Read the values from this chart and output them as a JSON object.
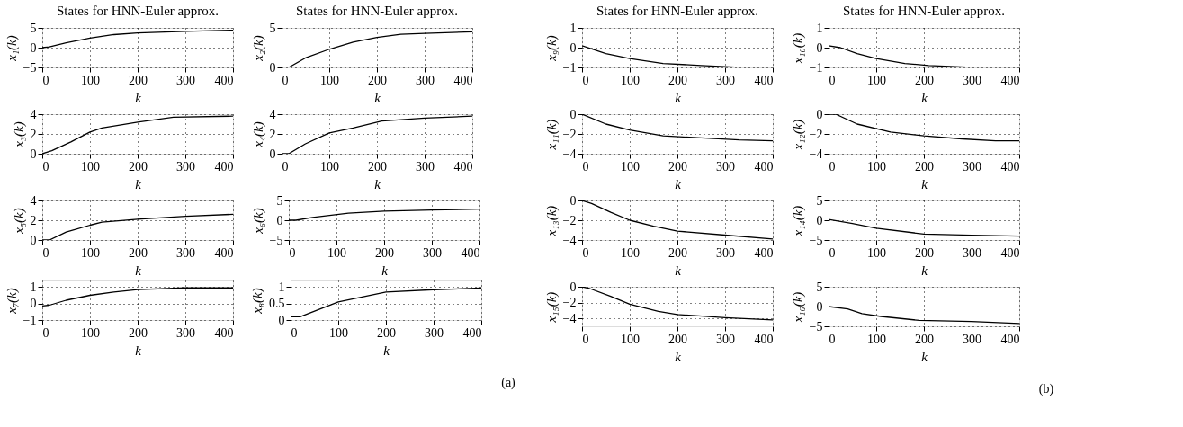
{
  "chart_data": [
    {
      "type": "line",
      "title": "States for HNN-Euler approx.",
      "xlabel": "k",
      "ylabel": "x₁(k)",
      "xlim": [
        0,
        400
      ],
      "xticks": [
        0,
        100,
        200,
        300,
        400
      ],
      "ylim": [
        -5,
        5
      ],
      "yticks": [
        -5,
        0,
        5
      ],
      "grid": true,
      "x": [
        0,
        15,
        50,
        100,
        150,
        200,
        300,
        400
      ],
      "series": [
        {
          "color": "#000000",
          "values": [
            0,
            0.2,
            1.2,
            2.4,
            3.3,
            3.7,
            4.1,
            4.4
          ]
        }
      ]
    },
    {
      "type": "line",
      "title": "States for HNN-Euler approx.",
      "xlabel": "k",
      "ylabel": "x₂(k)",
      "xlim": [
        0,
        400
      ],
      "xticks": [
        0,
        100,
        200,
        300,
        400
      ],
      "ylim": [
        0,
        5
      ],
      "yticks": [
        0,
        5
      ],
      "grid": true,
      "x": [
        0,
        15,
        50,
        100,
        150,
        200,
        250,
        300,
        400
      ],
      "series": [
        {
          "color": "#000000",
          "values": [
            0,
            0,
            1.2,
            2.3,
            3.2,
            3.8,
            4.2,
            4.3,
            4.5
          ]
        }
      ]
    },
    {
      "type": "line",
      "title": "States for HNN-Euler approx.",
      "xlabel": "k",
      "ylabel": "x₉(k)",
      "xlim": [
        0,
        400
      ],
      "xticks": [
        0,
        100,
        200,
        300,
        400
      ],
      "ylim": [
        -1,
        1
      ],
      "yticks": [
        -1,
        0,
        1
      ],
      "grid": true,
      "x": [
        0,
        50,
        100,
        170,
        250,
        330,
        400
      ],
      "series": [
        {
          "color": "#000000",
          "values": [
            0.1,
            -0.3,
            -0.55,
            -0.8,
            -0.9,
            -1,
            -1
          ]
        }
      ]
    },
    {
      "type": "line",
      "title": "States for HNN-Euler approx.",
      "xlabel": "k",
      "ylabel": "x₁₀(k)",
      "xlim": [
        0,
        400
      ],
      "xticks": [
        0,
        100,
        200,
        300,
        400
      ],
      "ylim": [
        -1,
        1
      ],
      "yticks": [
        -1,
        0,
        1
      ],
      "grid": true,
      "x": [
        0,
        25,
        60,
        100,
        160,
        210,
        300,
        400
      ],
      "series": [
        {
          "color": "#000000",
          "values": [
            0.1,
            0,
            -0.3,
            -0.55,
            -0.8,
            -0.9,
            -1,
            -1
          ]
        }
      ]
    },
    {
      "type": "line",
      "xlabel": "k",
      "ylabel": "x₃(k)",
      "xlim": [
        0,
        400
      ],
      "xticks": [
        0,
        100,
        200,
        300,
        400
      ],
      "ylim": [
        0,
        4
      ],
      "yticks": [
        0,
        2,
        4
      ],
      "grid": true,
      "x": [
        0,
        20,
        60,
        100,
        125,
        200,
        275,
        400
      ],
      "series": [
        {
          "color": "#000000",
          "values": [
            0,
            0.3,
            1.2,
            2.2,
            2.6,
            3.2,
            3.7,
            3.8
          ]
        }
      ]
    },
    {
      "type": "line",
      "xlabel": "k",
      "ylabel": "x₄(k)",
      "xlim": [
        0,
        400
      ],
      "xticks": [
        0,
        100,
        200,
        300,
        400
      ],
      "ylim": [
        0,
        4
      ],
      "yticks": [
        0,
        2,
        4
      ],
      "grid": true,
      "x": [
        0,
        15,
        50,
        100,
        150,
        210,
        300,
        400
      ],
      "series": [
        {
          "color": "#000000",
          "values": [
            0,
            0,
            1,
            2.1,
            2.6,
            3.3,
            3.6,
            3.8
          ]
        }
      ]
    },
    {
      "type": "line",
      "xlabel": "k",
      "ylabel": "x₁₁(k)",
      "xlim": [
        0,
        400
      ],
      "xticks": [
        0,
        100,
        200,
        300,
        400
      ],
      "ylim": [
        -4,
        0
      ],
      "yticks": [
        -4,
        -2,
        0
      ],
      "grid": true,
      "x": [
        0,
        50,
        100,
        170,
        250,
        330,
        400
      ],
      "series": [
        {
          "color": "#000000",
          "values": [
            0,
            -1,
            -1.6,
            -2.2,
            -2.4,
            -2.6,
            -2.7
          ]
        }
      ]
    },
    {
      "type": "line",
      "xlabel": "k",
      "ylabel": "x₁₂(k)",
      "xlim": [
        0,
        400
      ],
      "xticks": [
        0,
        100,
        200,
        300,
        400
      ],
      "ylim": [
        -4,
        0
      ],
      "yticks": [
        -4,
        -2,
        0
      ],
      "grid": true,
      "x": [
        0,
        15,
        60,
        130,
        200,
        280,
        350,
        400
      ],
      "series": [
        {
          "color": "#000000",
          "values": [
            0,
            0,
            -1,
            -1.8,
            -2.2,
            -2.5,
            -2.7,
            -2.7
          ]
        }
      ]
    },
    {
      "type": "line",
      "xlabel": "k",
      "ylabel": "x₅(k)",
      "xlim": [
        0,
        400
      ],
      "xticks": [
        0,
        100,
        200,
        300,
        400
      ],
      "ylim": [
        0,
        4
      ],
      "yticks": [
        0,
        2,
        4
      ],
      "grid": true,
      "x": [
        0,
        15,
        50,
        100,
        125,
        200,
        300,
        400
      ],
      "series": [
        {
          "color": "#000000",
          "values": [
            0,
            0,
            0.8,
            1.5,
            1.8,
            2.1,
            2.4,
            2.6
          ]
        }
      ]
    },
    {
      "type": "line",
      "xlabel": "k",
      "ylabel": "x₆(k)",
      "xlim": [
        0,
        400
      ],
      "xticks": [
        0,
        100,
        200,
        300,
        400
      ],
      "ylim": [
        -5,
        5
      ],
      "yticks": [
        -5,
        0,
        5
      ],
      "grid": true,
      "x": [
        0,
        15,
        50,
        125,
        200,
        300,
        400
      ],
      "series": [
        {
          "color": "#000000",
          "values": [
            0,
            0,
            0.7,
            1.8,
            2.3,
            2.6,
            2.8
          ]
        }
      ]
    },
    {
      "type": "line",
      "xlabel": "k",
      "ylabel": "x₁₃(k)",
      "xlim": [
        0,
        400
      ],
      "xticks": [
        0,
        100,
        200,
        300,
        400
      ],
      "ylim": [
        -4,
        0
      ],
      "yticks": [
        -4,
        -2,
        0
      ],
      "grid": true,
      "x": [
        0,
        20,
        60,
        100,
        150,
        200,
        300,
        400
      ],
      "series": [
        {
          "color": "#000000",
          "values": [
            0,
            -0.3,
            -1.2,
            -2,
            -2.6,
            -3.1,
            -3.5,
            -3.9
          ]
        }
      ]
    },
    {
      "type": "line",
      "xlabel": "k",
      "ylabel": "x₁₄(k)",
      "xlim": [
        0,
        400
      ],
      "xticks": [
        0,
        100,
        200,
        300,
        400
      ],
      "ylim": [
        -5,
        5
      ],
      "yticks": [
        -5,
        0,
        5
      ],
      "grid": true,
      "x": [
        0,
        50,
        100,
        200,
        300,
        400
      ],
      "series": [
        {
          "color": "#000000",
          "values": [
            0.2,
            -0.8,
            -2,
            -3.5,
            -3.8,
            -4
          ]
        }
      ]
    },
    {
      "type": "line",
      "xlabel": "k",
      "ylabel": "x₇(k)",
      "xlim": [
        0,
        400
      ],
      "xticks": [
        0,
        100,
        200,
        300,
        400
      ],
      "ylim": [
        -1,
        1.4
      ],
      "yticks": [
        -1,
        0,
        1
      ],
      "grid": true,
      "x": [
        0,
        15,
        50,
        100,
        150,
        200,
        300,
        400
      ],
      "series": [
        {
          "color": "#000000",
          "values": [
            -0.15,
            -0.1,
            0.2,
            0.5,
            0.7,
            0.85,
            0.95,
            0.95
          ]
        }
      ]
    },
    {
      "type": "line",
      "xlabel": "k",
      "ylabel": "x₈(k)",
      "xlim": [
        0,
        400
      ],
      "xticks": [
        0,
        100,
        200,
        300,
        400
      ],
      "ylim": [
        0,
        1.2
      ],
      "yticks": [
        0,
        0.5,
        1
      ],
      "grid": true,
      "x": [
        0,
        20,
        100,
        200,
        300,
        400
      ],
      "series": [
        {
          "color": "#000000",
          "values": [
            0.1,
            0.1,
            0.55,
            0.85,
            0.92,
            0.97
          ]
        }
      ],
      "annotations": [
        "(a)"
      ]
    },
    {
      "type": "line",
      "xlabel": "k",
      "ylabel": "x₁₅(k)",
      "xlim": [
        0,
        400
      ],
      "xticks": [
        0,
        100,
        200,
        300,
        400
      ],
      "ylim": [
        -5,
        0
      ],
      "yticks": [
        -4,
        -2,
        0
      ],
      "grid": true,
      "x": [
        0,
        15,
        60,
        100,
        160,
        200,
        300,
        400
      ],
      "series": [
        {
          "color": "#000000",
          "values": [
            0,
            -0.2,
            -1.2,
            -2.2,
            -3.1,
            -3.5,
            -3.9,
            -4.2
          ]
        }
      ]
    },
    {
      "type": "line",
      "xlabel": "k",
      "ylabel": "x₁₆(k)",
      "xlim": [
        0,
        400
      ],
      "xticks": [
        0,
        100,
        200,
        300,
        400
      ],
      "ylim": [
        -5,
        5
      ],
      "yticks": [
        -5,
        0,
        5
      ],
      "grid": true,
      "x": [
        0,
        40,
        70,
        110,
        190,
        300,
        400
      ],
      "series": [
        {
          "color": "#000000",
          "values": [
            0,
            -0.6,
            -1.8,
            -2.5,
            -3.5,
            -3.8,
            -4.3
          ]
        }
      ],
      "annotations": [
        "(b)"
      ]
    }
  ]
}
